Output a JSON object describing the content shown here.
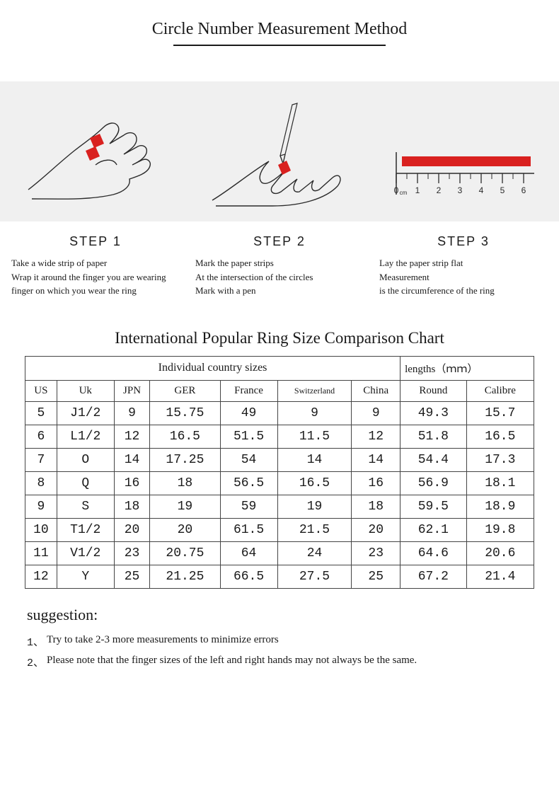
{
  "title": "Circle Number Measurement Method",
  "accent_color": "#d9211f",
  "stroke_color": "#2b2b2b",
  "band_bg": "#f0f0f0",
  "ruler": {
    "ticks": [
      "0",
      "1",
      "2",
      "3",
      "4",
      "5",
      "6"
    ],
    "unit_subscript": "cm"
  },
  "steps": [
    {
      "label": "STEP 1",
      "lines": [
        "Take a wide strip of paper",
        "Wrap it around the finger you are wearing",
        "finger on which you wear the ring"
      ]
    },
    {
      "label": "STEP 2",
      "lines": [
        "Mark the paper strips",
        "At the intersection of the circles",
        "Mark with a pen"
      ]
    },
    {
      "label": "STEP 3",
      "lines": [
        "Lay the paper strip flat",
        "Measurement",
        "is the circumference of the ring"
      ]
    }
  ],
  "chart_title": "International Popular Ring Size Comparison Chart",
  "table": {
    "group_headers": [
      "Individual country sizes",
      "lengths（ｍｍ）"
    ],
    "columns": [
      "US",
      "Uk",
      "JPN",
      "GER",
      "France",
      "Switzerland",
      "China",
      "Round",
      "Calibre"
    ],
    "rows": [
      [
        "5",
        "J1/2",
        "9",
        "15.75",
        "49",
        "9",
        "9",
        "49.3",
        "15.7"
      ],
      [
        "6",
        "L1/2",
        "12",
        "16.5",
        "51.5",
        "11.5",
        "12",
        "51.8",
        "16.5"
      ],
      [
        "7",
        "O",
        "14",
        "17.25",
        "54",
        "14",
        "14",
        "54.4",
        "17.3"
      ],
      [
        "8",
        "Q",
        "16",
        "18",
        "56.5",
        "16.5",
        "16",
        "56.9",
        "18.1"
      ],
      [
        "9",
        "S",
        "18",
        "19",
        "59",
        "19",
        "18",
        "59.5",
        "18.9"
      ],
      [
        "10",
        "T1/2",
        "20",
        "20",
        "61.5",
        "21.5",
        "20",
        "62.1",
        "19.8"
      ],
      [
        "11",
        "V1/2",
        "23",
        "20.75",
        "64",
        "24",
        "23",
        "64.6",
        "20.6"
      ],
      [
        "12",
        "Y",
        "25",
        "21.25",
        "66.5",
        "27.5",
        "25",
        "67.2",
        "21.4"
      ]
    ]
  },
  "suggestion": {
    "title": "suggestion:",
    "items": [
      "Try to take 2-3 more measurements to minimize errors",
      "Please note that the finger sizes of the left and right hands may not always be the same."
    ]
  }
}
